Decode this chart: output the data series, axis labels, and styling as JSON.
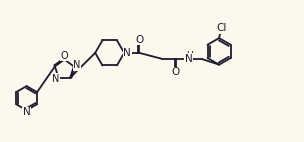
{
  "bg_color": "#fdf8ee",
  "bond_color": "#1c1c2e",
  "atom_color": "#1c1c2e",
  "line_width": 1.3,
  "font_size": 7.5,
  "figsize": [
    3.04,
    1.42
  ],
  "dpi": 100,
  "xlim": [
    0.0,
    10.0
  ],
  "ylim": [
    0.0,
    4.7
  ]
}
